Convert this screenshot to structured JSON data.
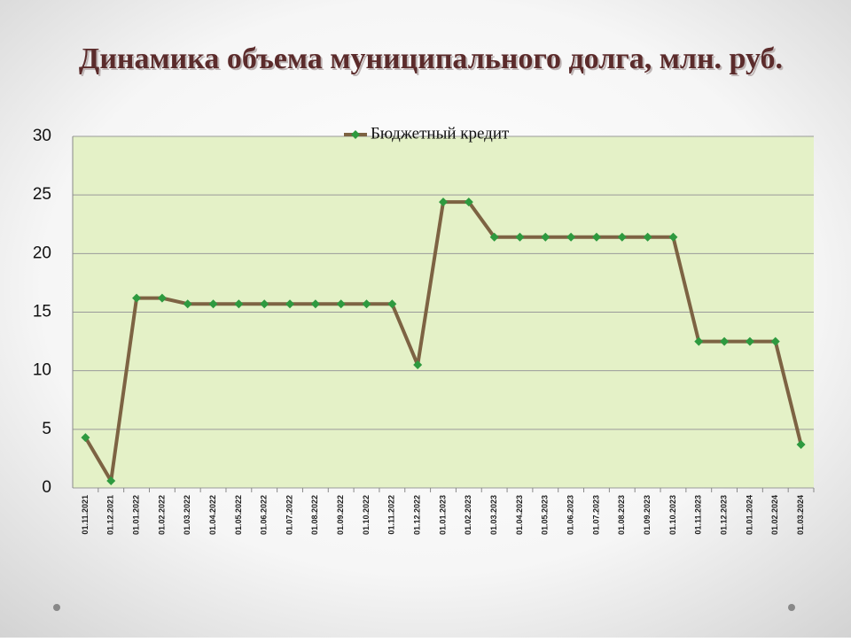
{
  "chart_data": {
    "type": "line",
    "title": "Динамика объема муниципального долга, млн. руб.",
    "categories": [
      "01.11.2021",
      "01.12.2021",
      "01.01.2022",
      "01.02.2022",
      "01.03.2022",
      "01.04.2022",
      "01.05.2022",
      "01.06.2022",
      "01.07.2022",
      "01.08.2022",
      "01.09.2022",
      "01.10.2022",
      "01.11.2022",
      "01.12.2022",
      "01.01.2023",
      "01.02.2023",
      "01.03.2023",
      "01.04.2023",
      "01.05.2023",
      "01.06.2023",
      "01.07.2023",
      "01.08.2023",
      "01.09.2023",
      "01.10.2023",
      "01.11.2023",
      "01.12.2023",
      "01.01.2024",
      "01.02.2024",
      "01.03.2024"
    ],
    "series": [
      {
        "name": "Бюджетный кредит",
        "color": "#7d6343",
        "marker_color": "#2e9a3f",
        "values": [
          4.3,
          0.6,
          16.2,
          16.2,
          15.7,
          15.7,
          15.7,
          15.7,
          15.7,
          15.7,
          15.7,
          15.7,
          15.7,
          10.5,
          24.4,
          24.4,
          21.4,
          21.4,
          21.4,
          21.4,
          21.4,
          21.4,
          21.4,
          21.4,
          12.5,
          12.5,
          12.5,
          12.5,
          3.7
        ]
      }
    ],
    "ylim": [
      0,
      30
    ],
    "yticks": [
      0,
      5,
      10,
      15,
      20,
      25,
      30
    ],
    "grid": true,
    "legend": "top"
  }
}
